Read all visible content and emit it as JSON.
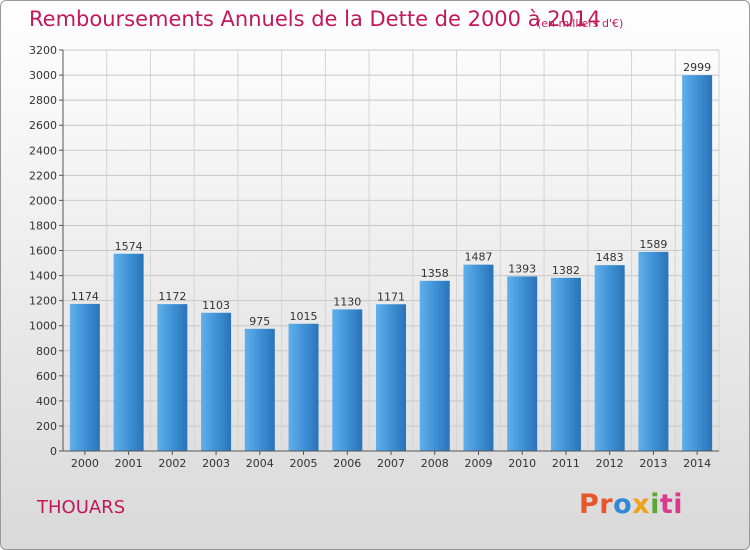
{
  "header": {
    "title": "Remboursements Annuels de la Dette de 2000 à 2014",
    "subtitle": "(en milliers d'€)"
  },
  "footer": {
    "city": "THOUARS",
    "brand_parts": [
      "Pr",
      "o",
      "x",
      "i",
      "ti"
    ]
  },
  "colors": {
    "bar": "#3d8fd4",
    "title": "#c2185b"
  },
  "chart_data": {
    "type": "bar",
    "title": "Remboursements Annuels de la Dette de 2000 à 2014",
    "subtitle": "(en milliers d'€)",
    "categories": [
      "2000",
      "2001",
      "2002",
      "2003",
      "2004",
      "2005",
      "2006",
      "2007",
      "2008",
      "2009",
      "2010",
      "2011",
      "2012",
      "2013",
      "2014"
    ],
    "values": [
      1174,
      1574,
      1172,
      1103,
      975,
      1015,
      1130,
      1171,
      1358,
      1487,
      1393,
      1382,
      1483,
      1589,
      2999
    ],
    "ylim": [
      0,
      3200
    ],
    "yticks": [
      0,
      200,
      400,
      600,
      800,
      1000,
      1200,
      1400,
      1600,
      1800,
      2000,
      2200,
      2400,
      2600,
      2800,
      3000,
      3200
    ],
    "grid": true,
    "xlabel": "",
    "ylabel": ""
  }
}
